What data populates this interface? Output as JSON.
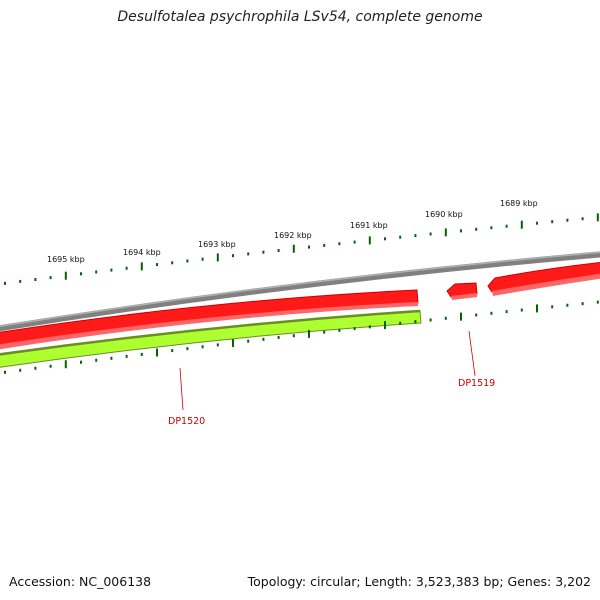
{
  "title": "Desulfotalea psychrophila LSv54, complete genome",
  "footer": {
    "accession": "Accession: NC_006138",
    "summary": "Topology: circular; Length: 3,523,383 bp; Genes: 3,202"
  },
  "ticks": [
    {
      "label": "1689 kbp"
    },
    {
      "label": "1690 kbp"
    },
    {
      "label": "1691 kbp"
    },
    {
      "label": "1692 kbp"
    },
    {
      "label": "1693 kbp"
    },
    {
      "label": "1694 kbp"
    },
    {
      "label": "1695 kbp"
    }
  ],
  "genes": [
    {
      "id": "DP1519",
      "strand": "+"
    },
    {
      "id": "DP1520",
      "strand": "-"
    }
  ],
  "colors": {
    "backbone": "#808080",
    "gene_red": "#ff0000",
    "gene_red_dark": "#cc0000",
    "gene_green": "#adff2f",
    "gene_green_dark": "#6b8e23",
    "tick": "#006400",
    "label_red": "#cc0000"
  }
}
